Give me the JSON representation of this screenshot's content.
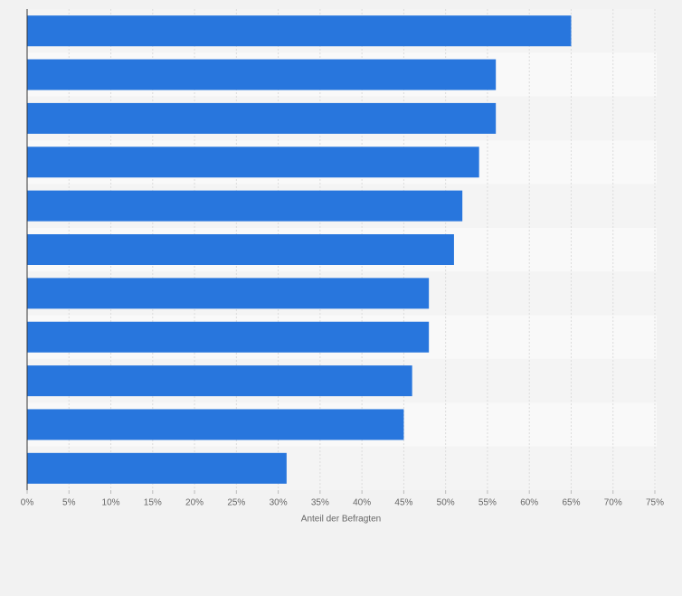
{
  "chart_data": {
    "type": "bar",
    "orientation": "horizontal",
    "categories": [
      null,
      null,
      null,
      null,
      null,
      null,
      null,
      null,
      null,
      null,
      null
    ],
    "values": [
      65,
      56,
      56,
      54,
      52,
      51,
      48,
      48,
      46,
      45,
      31
    ],
    "color": "#2876dd",
    "xlabel": "Anteil der Befragten",
    "xlim": [
      0,
      75
    ],
    "xticks": [
      {
        "value": 0,
        "label": "0%"
      },
      {
        "value": 5,
        "label": "5%"
      },
      {
        "value": 10,
        "label": "10%"
      },
      {
        "value": 15,
        "label": "15%"
      },
      {
        "value": 20,
        "label": "20%"
      },
      {
        "value": 25,
        "label": "25%"
      },
      {
        "value": 30,
        "label": "30%"
      },
      {
        "value": 35,
        "label": "35%"
      },
      {
        "value": 40,
        "label": "40%"
      },
      {
        "value": 45,
        "label": "45%"
      },
      {
        "value": 50,
        "label": "50%"
      },
      {
        "value": 55,
        "label": "55%"
      },
      {
        "value": 60,
        "label": "60%"
      },
      {
        "value": 65,
        "label": "65%"
      },
      {
        "value": 70,
        "label": "70%"
      },
      {
        "value": 75,
        "label": "75%"
      }
    ],
    "grid": true
  }
}
